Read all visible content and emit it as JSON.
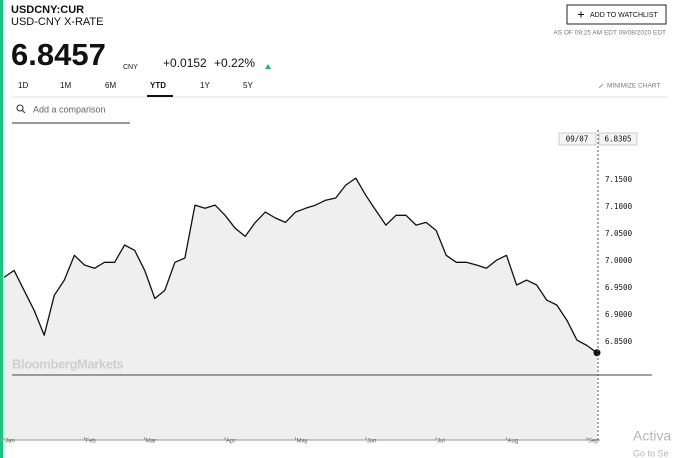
{
  "header": {
    "ticker": "USDCNY:CUR",
    "name": "USD-CNY X-RATE",
    "price": "6.8457",
    "currency": "CNY",
    "change": "+0.0152",
    "change_pct": "+0.22%",
    "watchlist_button": "ADD TO WATCHLIST",
    "timestamp": "AS OF 09:25 AM EDT 09/08/2020 EDT"
  },
  "tabs": [
    "1D",
    "1M",
    "6M",
    "YTD",
    "1Y",
    "5Y"
  ],
  "selected_tab": "YTD",
  "minimize": "MINIMIZE CHART",
  "comparison_placeholder": "Add a comparison",
  "watermark": "BloombergMarkets",
  "os_watermark": {
    "line1": "Activa",
    "line2": "Go to Se"
  },
  "chart_data": {
    "type": "line",
    "color": "#111111",
    "fill": "#efefef",
    "categories": [
      "Jan",
      null,
      null,
      null,
      null,
      null,
      null,
      null,
      "Feb",
      null,
      null,
      null,
      null,
      null,
      "Mar",
      null,
      null,
      null,
      null,
      null,
      null,
      null,
      "Apr",
      null,
      null,
      null,
      null,
      null,
      null,
      "May",
      null,
      null,
      null,
      null,
      null,
      null,
      "Jun",
      null,
      null,
      null,
      null,
      null,
      null,
      "Jul",
      null,
      null,
      null,
      null,
      null,
      null,
      "Aug",
      null,
      null,
      null,
      null,
      null,
      null,
      null,
      "Sep",
      null
    ],
    "values": [
      6.97,
      6.983,
      6.946,
      6.909,
      6.863,
      6.937,
      6.965,
      7.011,
      6.993,
      6.987,
      6.998,
      6.998,
      7.03,
      7.02,
      6.983,
      6.931,
      6.946,
      6.998,
      7.006,
      7.104,
      7.098,
      7.104,
      7.085,
      7.061,
      7.046,
      7.072,
      7.091,
      7.08,
      7.072,
      7.091,
      7.098,
      7.104,
      7.113,
      7.117,
      7.141,
      7.154,
      7.122,
      7.094,
      7.067,
      7.085,
      7.085,
      7.067,
      7.072,
      7.057,
      7.011,
      6.998,
      6.998,
      6.993,
      6.987,
      7.002,
      7.011,
      6.956,
      6.965,
      6.956,
      6.928,
      6.919,
      6.891,
      6.854,
      6.844,
      6.8305
    ],
    "last_date": "09/07",
    "ylim": [
      6.669,
      7.243
    ],
    "yticks": [
      {
        "value": 6.85,
        "label": "6.8500"
      },
      {
        "value": 6.9,
        "label": "6.9000"
      },
      {
        "value": 6.95,
        "label": "6.9500"
      },
      {
        "value": 7.0,
        "label": "7.0000"
      },
      {
        "value": 7.05,
        "label": "7.0500"
      },
      {
        "value": 7.1,
        "label": "7.1000"
      },
      {
        "value": 7.15,
        "label": "7.1500"
      }
    ],
    "grid": false
  }
}
